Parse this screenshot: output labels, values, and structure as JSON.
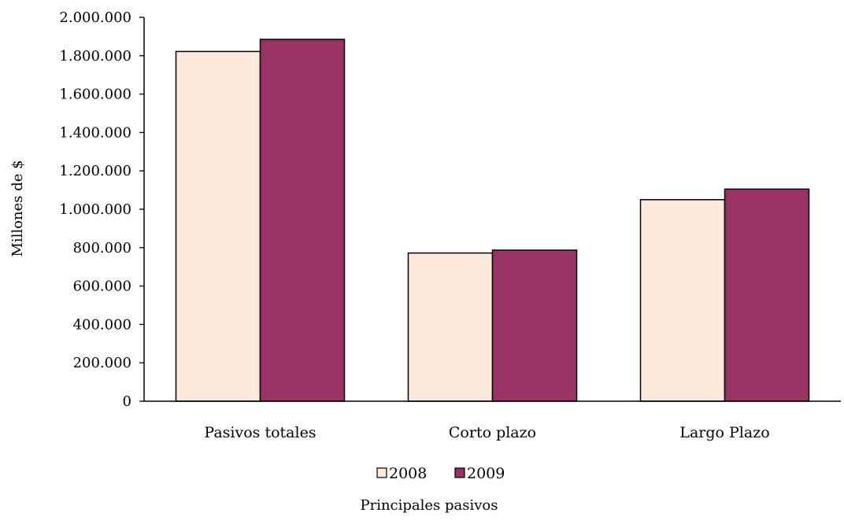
{
  "chart_data": {
    "type": "bar",
    "categories": [
      "Pasivos totales",
      "Corto plazo",
      "Largo Plazo"
    ],
    "series": [
      {
        "name": "2008",
        "values": [
          1822000,
          772000,
          1050000
        ],
        "color": "#fde9dc"
      },
      {
        "name": "2009",
        "values": [
          1885000,
          787000,
          1105000
        ],
        "color": "#993366"
      }
    ],
    "title": "",
    "xlabel": "Principales pasivos",
    "ylabel": "Millones de $",
    "ylim": [
      0,
      2000000
    ],
    "yticks": [
      "0",
      "200.000",
      "400.000",
      "600.000",
      "800.000",
      "1.000.000",
      "1.200.000",
      "1.400.000",
      "1.600.000",
      "1.800.000",
      "2.000.000"
    ],
    "grid": false,
    "legend_position": "bottom",
    "bar_outline_color": "#000000"
  }
}
